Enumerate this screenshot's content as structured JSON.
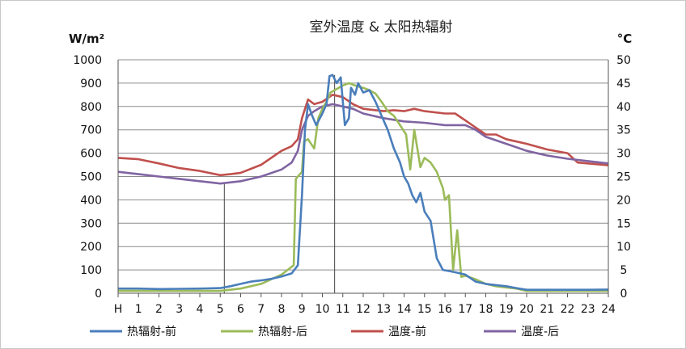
{
  "chart_data": {
    "type": "line",
    "title": "室外温度  &  太阳热辐射",
    "left_unit": "W/m²",
    "right_unit": "°C",
    "x_ticks": [
      "H",
      "1",
      "2",
      "3",
      "4",
      "5",
      "6",
      "7",
      "8",
      "9",
      "10",
      "11",
      "12",
      "13",
      "14",
      "15",
      "16",
      "17",
      "18",
      "19",
      "20",
      "21",
      "22",
      "23",
      "24"
    ],
    "xlim": [
      0,
      24
    ],
    "ylim_left": [
      0,
      1000
    ],
    "ylim_right": [
      0,
      50
    ],
    "y_ticks_left": [
      0,
      100,
      200,
      300,
      400,
      500,
      600,
      700,
      800,
      900,
      1000
    ],
    "y_ticks_right": [
      0,
      5,
      10,
      15,
      20,
      25,
      30,
      35,
      40,
      45,
      50
    ],
    "grid": "horizontal",
    "vertical_markers": [
      5.2,
      10.6
    ],
    "legend_position": "bottom",
    "series": [
      {
        "name": "热辐射-前",
        "axis": "left",
        "color": "#4a7ebb",
        "points": [
          [
            0,
            20
          ],
          [
            1,
            20
          ],
          [
            2,
            18
          ],
          [
            3,
            19
          ],
          [
            4,
            20
          ],
          [
            5,
            22
          ],
          [
            5.5,
            30
          ],
          [
            6,
            40
          ],
          [
            6.5,
            50
          ],
          [
            7,
            55
          ],
          [
            7.5,
            62
          ],
          [
            8,
            72
          ],
          [
            8.5,
            85
          ],
          [
            8.8,
            120
          ],
          [
            9,
            420
          ],
          [
            9.15,
            700
          ],
          [
            9.3,
            810
          ],
          [
            9.5,
            760
          ],
          [
            9.7,
            720
          ],
          [
            10,
            770
          ],
          [
            10.2,
            810
          ],
          [
            10.35,
            930
          ],
          [
            10.5,
            935
          ],
          [
            10.7,
            900
          ],
          [
            10.9,
            925
          ],
          [
            11.1,
            720
          ],
          [
            11.3,
            750
          ],
          [
            11.4,
            880
          ],
          [
            11.6,
            850
          ],
          [
            11.75,
            900
          ],
          [
            12,
            860
          ],
          [
            12.3,
            870
          ],
          [
            12.6,
            820
          ],
          [
            12.9,
            760
          ],
          [
            13.2,
            700
          ],
          [
            13.5,
            620
          ],
          [
            13.8,
            560
          ],
          [
            14,
            500
          ],
          [
            14.2,
            470
          ],
          [
            14.4,
            420
          ],
          [
            14.6,
            390
          ],
          [
            14.8,
            430
          ],
          [
            15,
            350
          ],
          [
            15.3,
            310
          ],
          [
            15.6,
            150
          ],
          [
            15.9,
            100
          ],
          [
            16.2,
            95
          ],
          [
            16.5,
            90
          ],
          [
            17,
            80
          ],
          [
            17.5,
            50
          ],
          [
            18,
            40
          ],
          [
            18.5,
            35
          ],
          [
            19,
            30
          ],
          [
            19.5,
            22
          ],
          [
            20,
            15
          ],
          [
            21,
            15
          ],
          [
            22,
            15
          ],
          [
            23,
            15
          ],
          [
            24,
            16
          ]
        ]
      },
      {
        "name": "热辐射-后",
        "axis": "left",
        "color": "#9bbb59",
        "points": [
          [
            0,
            10
          ],
          [
            1,
            10
          ],
          [
            2,
            10
          ],
          [
            3,
            10
          ],
          [
            4,
            10
          ],
          [
            5,
            10
          ],
          [
            6,
            20
          ],
          [
            7,
            40
          ],
          [
            7.5,
            60
          ],
          [
            8,
            80
          ],
          [
            8.3,
            100
          ],
          [
            8.6,
            120
          ],
          [
            8.7,
            490
          ],
          [
            9,
            520
          ],
          [
            9.1,
            650
          ],
          [
            9.3,
            660
          ],
          [
            9.6,
            620
          ],
          [
            9.8,
            750
          ],
          [
            10,
            790
          ],
          [
            10.2,
            820
          ],
          [
            10.4,
            860
          ],
          [
            10.6,
            870
          ],
          [
            10.8,
            880
          ],
          [
            11,
            890
          ],
          [
            11.3,
            900
          ],
          [
            11.6,
            890
          ],
          [
            12,
            880
          ],
          [
            12.3,
            870
          ],
          [
            12.6,
            855
          ],
          [
            12.9,
            820
          ],
          [
            13.2,
            780
          ],
          [
            13.5,
            760
          ],
          [
            13.8,
            720
          ],
          [
            14.1,
            680
          ],
          [
            14.3,
            530
          ],
          [
            14.5,
            700
          ],
          [
            14.8,
            540
          ],
          [
            15,
            580
          ],
          [
            15.3,
            560
          ],
          [
            15.6,
            520
          ],
          [
            15.9,
            450
          ],
          [
            16,
            400
          ],
          [
            16.2,
            420
          ],
          [
            16.4,
            100
          ],
          [
            16.6,
            270
          ],
          [
            16.8,
            70
          ],
          [
            17,
            75
          ],
          [
            17.5,
            60
          ],
          [
            18,
            40
          ],
          [
            18.5,
            30
          ],
          [
            19,
            25
          ],
          [
            19.5,
            20
          ],
          [
            20,
            10
          ],
          [
            21,
            10
          ],
          [
            22,
            10
          ],
          [
            23,
            10
          ],
          [
            24,
            10
          ]
        ]
      },
      {
        "name": "温度-前",
        "axis": "right",
        "color": "#c0504d",
        "points": [
          [
            0,
            29
          ],
          [
            1,
            28.7
          ],
          [
            2,
            27.8
          ],
          [
            3,
            26.8
          ],
          [
            4,
            26.2
          ],
          [
            5,
            25.3
          ],
          [
            5.5,
            25.5
          ],
          [
            6,
            25.8
          ],
          [
            7,
            27.5
          ],
          [
            8,
            30.5
          ],
          [
            8.5,
            31.5
          ],
          [
            8.8,
            33
          ],
          [
            9,
            37.5
          ],
          [
            9.3,
            41.5
          ],
          [
            9.6,
            40.5
          ],
          [
            10,
            41
          ],
          [
            10.5,
            42.5
          ],
          [
            11,
            42
          ],
          [
            11.5,
            40.5
          ],
          [
            12,
            39.5
          ],
          [
            13,
            39
          ],
          [
            13.5,
            39.2
          ],
          [
            14,
            39
          ],
          [
            14.5,
            39.5
          ],
          [
            15,
            39
          ],
          [
            16,
            38.5
          ],
          [
            16.5,
            38.5
          ],
          [
            17,
            37
          ],
          [
            17.5,
            35.5
          ],
          [
            18,
            34
          ],
          [
            18.5,
            34
          ],
          [
            19,
            33
          ],
          [
            20,
            32
          ],
          [
            21,
            30.8
          ],
          [
            22,
            30
          ],
          [
            22.5,
            28
          ],
          [
            23,
            27.8
          ],
          [
            24,
            27.4
          ]
        ]
      },
      {
        "name": "温度-后",
        "axis": "right",
        "color": "#8064a2",
        "points": [
          [
            0,
            26
          ],
          [
            1,
            25.5
          ],
          [
            2,
            25
          ],
          [
            3,
            24.5
          ],
          [
            4,
            24
          ],
          [
            5,
            23.5
          ],
          [
            6,
            24
          ],
          [
            7,
            25
          ],
          [
            8,
            26.5
          ],
          [
            8.5,
            28
          ],
          [
            8.8,
            30.5
          ],
          [
            9,
            35
          ],
          [
            9.3,
            38
          ],
          [
            9.6,
            39
          ],
          [
            10,
            40
          ],
          [
            10.5,
            40.5
          ],
          [
            11,
            40
          ],
          [
            11.5,
            39.5
          ],
          [
            12,
            38.5
          ],
          [
            13,
            37.5
          ],
          [
            14,
            36.8
          ],
          [
            15,
            36.5
          ],
          [
            16,
            36
          ],
          [
            17,
            36
          ],
          [
            17.5,
            35
          ],
          [
            18,
            33.5
          ],
          [
            19,
            32
          ],
          [
            20,
            30.5
          ],
          [
            21,
            29.5
          ],
          [
            22,
            28.8
          ],
          [
            23,
            28.3
          ],
          [
            24,
            27.8
          ]
        ]
      }
    ]
  }
}
